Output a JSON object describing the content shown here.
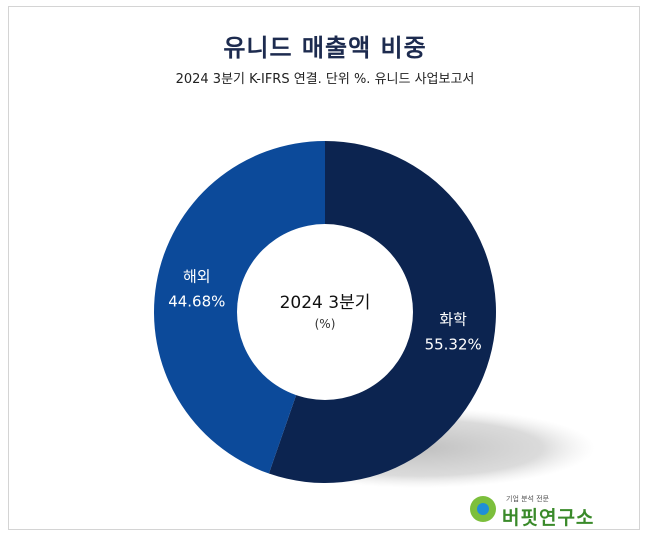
{
  "title": "유니드 매출액 비중",
  "subtitle": "2024 3분기 K-IFRS 연결. 단위 %. 유니드 사업보고서",
  "chart_data": {
    "type": "pie",
    "donut": true,
    "center_label": "2024 3분기",
    "center_unit": "(%)",
    "categories": [
      "화학",
      "해외"
    ],
    "values": [
      55.32,
      44.68
    ],
    "value_labels": [
      "55.32%",
      "44.68%"
    ],
    "colors": [
      "#0c2450",
      "#0c4a9a"
    ],
    "legend": "none"
  },
  "brand": {
    "tagline": "기업 분석 전문",
    "name": "버핏연구소"
  }
}
